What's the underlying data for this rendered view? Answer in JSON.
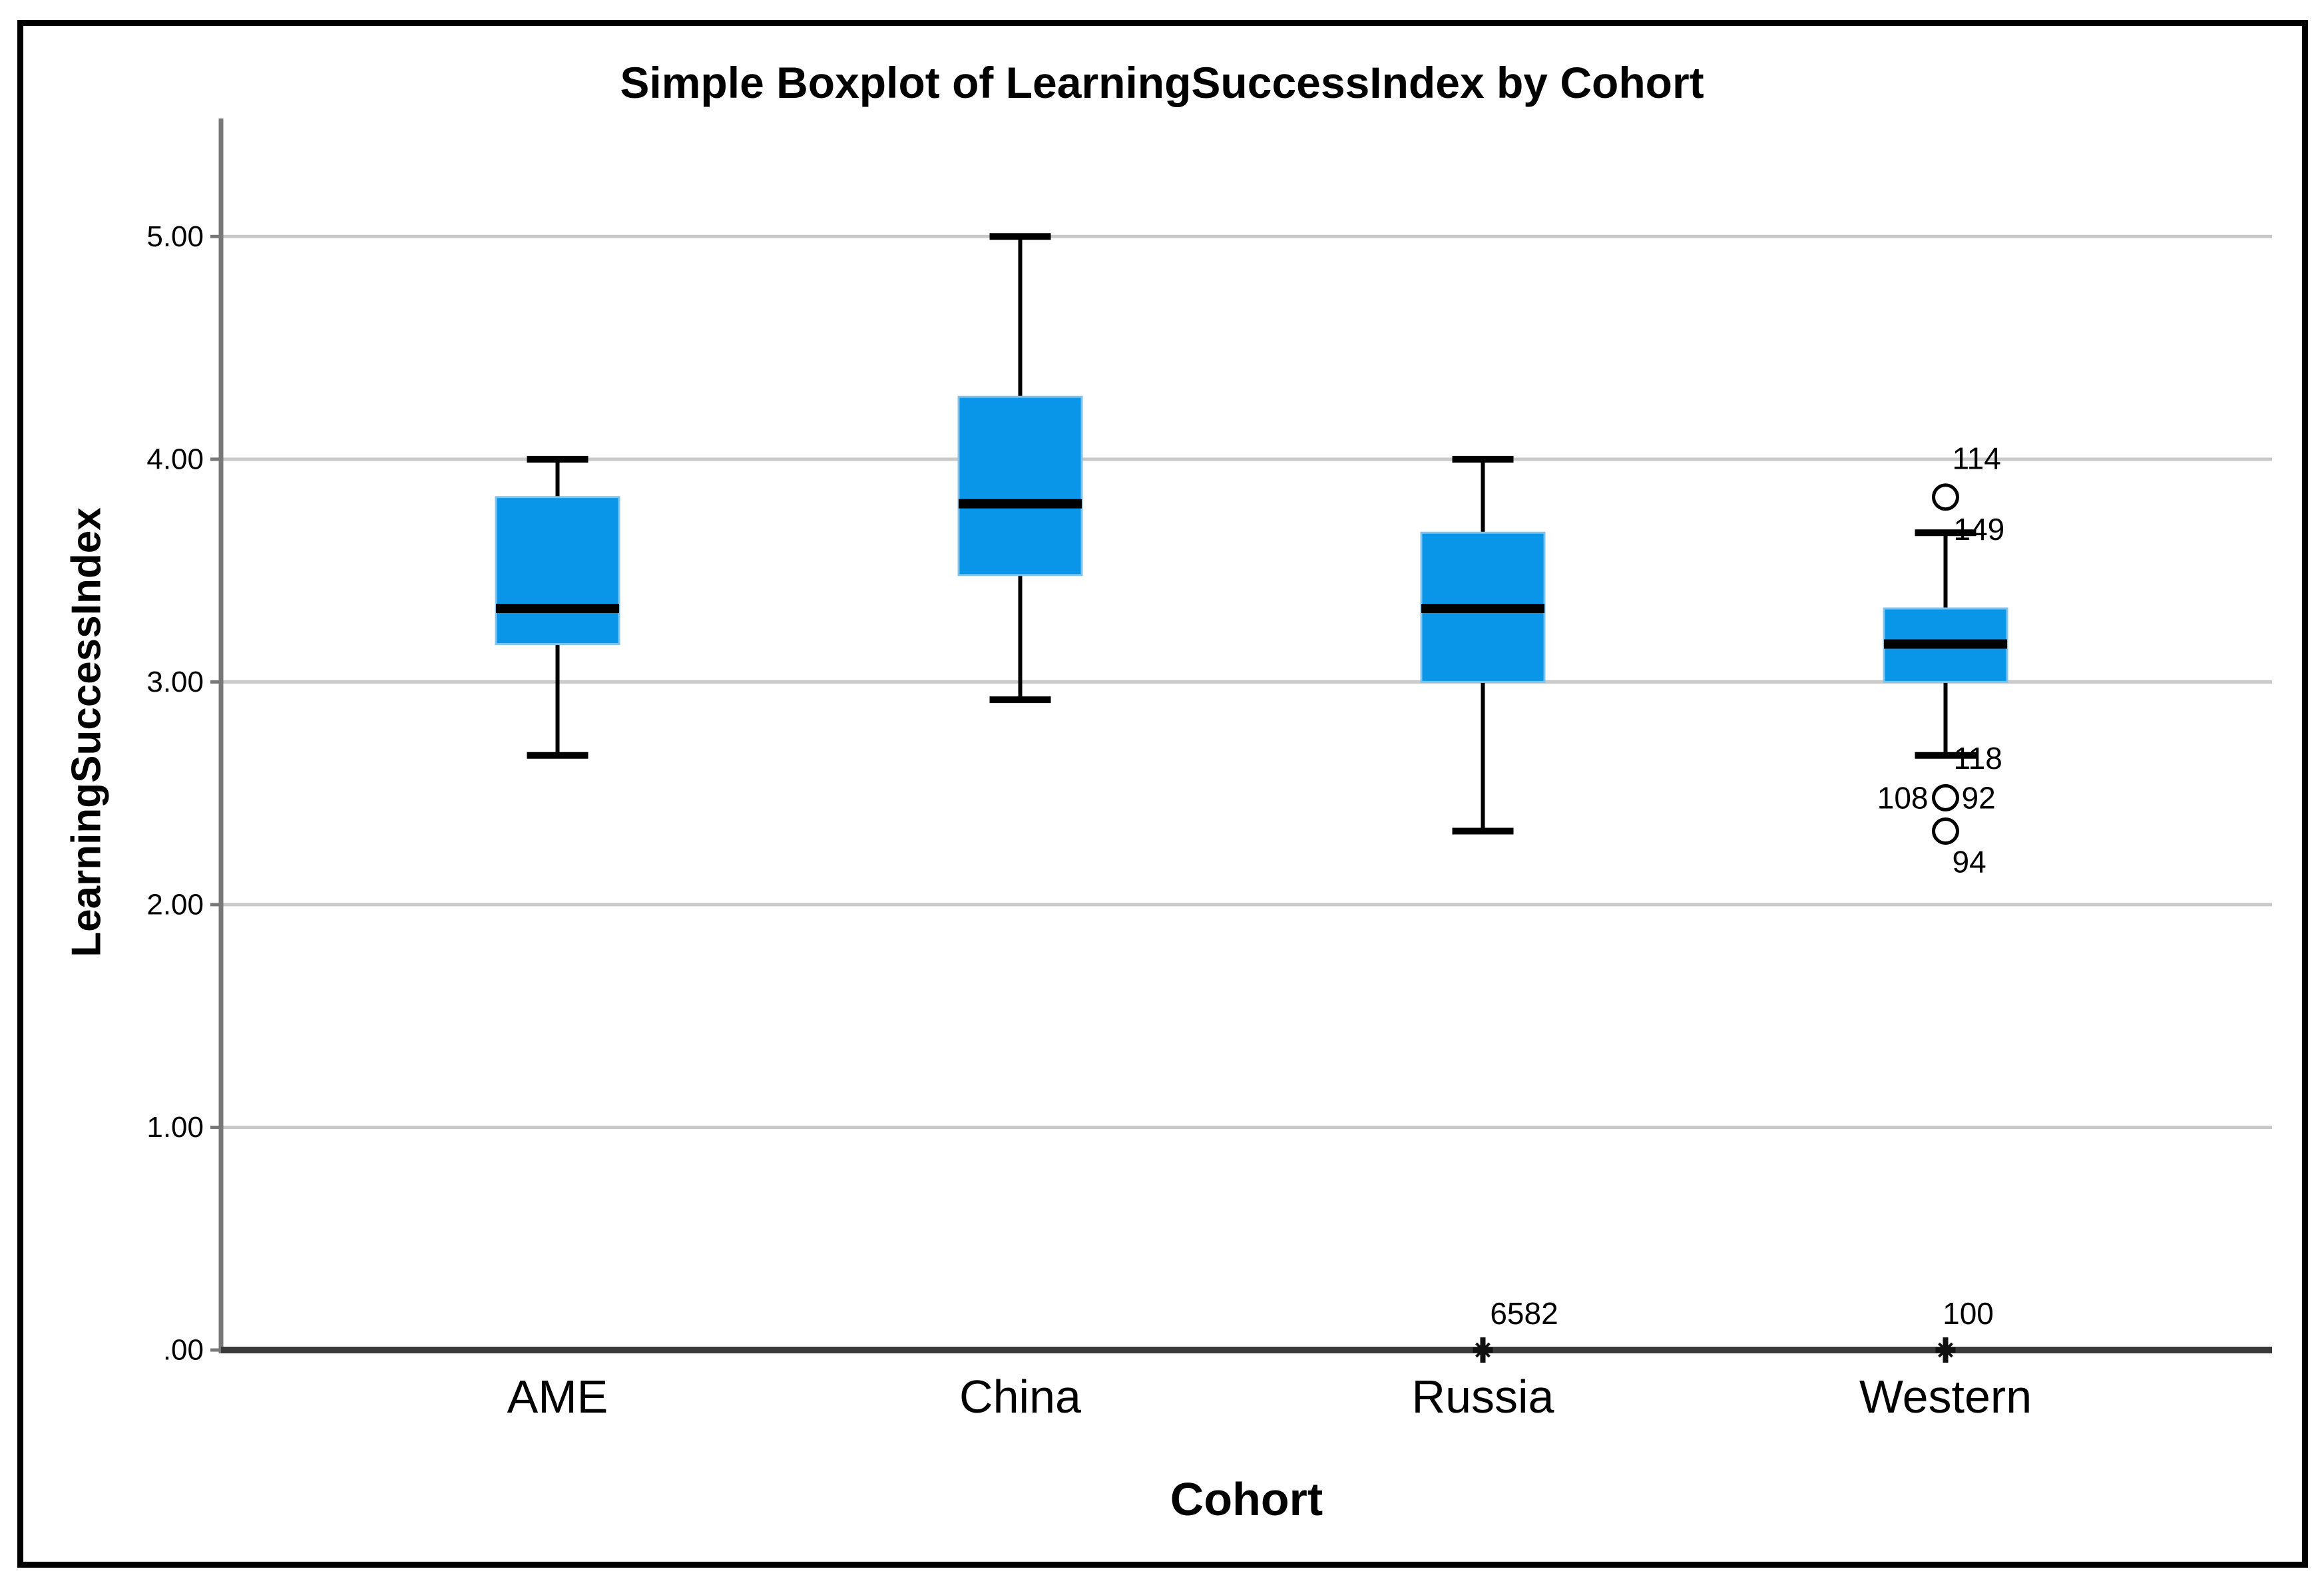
{
  "chart_data": {
    "type": "boxplot",
    "title": "Simple Boxplot of LearningSuccessIndex by Cohort",
    "xlabel": "Cohort",
    "ylabel": "LearningSuccessIndex",
    "ylim": [
      0,
      5.53
    ],
    "grid": "horizontal-gridlines-on",
    "legend": "none",
    "yticks": [
      {
        "label": ".00",
        "value": 0
      },
      {
        "label": "1.00",
        "value": 1
      },
      {
        "label": "2.00",
        "value": 2
      },
      {
        "label": "3.00",
        "value": 3
      },
      {
        "label": "4.00",
        "value": 4
      },
      {
        "label": "5.00",
        "value": 5
      }
    ],
    "categories": [
      "AME",
      "China",
      "Russia",
      "Western"
    ],
    "series": [
      {
        "name": "AME",
        "min": 2.67,
        "q1": 3.17,
        "median": 3.33,
        "q3": 3.83,
        "max": 4.0,
        "outliers": []
      },
      {
        "name": "China",
        "min": 2.92,
        "q1": 3.48,
        "median": 3.8,
        "q3": 4.28,
        "max": 5.0,
        "outliers": []
      },
      {
        "name": "Russia",
        "min": 2.33,
        "q1": 3.0,
        "median": 3.33,
        "q3": 3.67,
        "max": 4.0,
        "outliers": [
          {
            "value": 0.0,
            "marker": "extreme",
            "labels": [
              {
                "text": "6582",
                "dx": 62,
                "dy": -55,
                "anchor": "middle"
              }
            ]
          }
        ]
      },
      {
        "name": "Western",
        "min": 2.67,
        "q1": 3.0,
        "median": 3.17,
        "q3": 3.33,
        "max": 3.67,
        "whisker_labels": {
          "max": {
            "text": "149",
            "dx": 12,
            "dy": -5
          },
          "min": {
            "text": "118",
            "dx": 12,
            "dy": 4
          }
        },
        "outliers": [
          {
            "value": 3.83,
            "marker": "circle",
            "labels": [
              {
                "text": "114",
                "dx": 10,
                "dy": -58,
                "anchor": "start"
              }
            ]
          },
          {
            "value": 2.48,
            "marker": "circle",
            "labels": [
              {
                "text": "108",
                "dx": -26,
                "dy": 0,
                "anchor": "end"
              },
              {
                "text": "92",
                "dx": 24,
                "dy": 0,
                "anchor": "start"
              }
            ]
          },
          {
            "value": 2.33,
            "marker": "circle",
            "labels": [
              {
                "text": "94",
                "dx": 10,
                "dy": 46,
                "anchor": "start"
              }
            ]
          },
          {
            "value": 0.0,
            "marker": "extreme",
            "labels": [
              {
                "text": "100",
                "dx": 34,
                "dy": -55,
                "anchor": "middle"
              }
            ]
          }
        ]
      }
    ],
    "colors": {
      "box_fill": "#0995E8",
      "box_border": "#7FC3EF",
      "median": "#000000",
      "whisker": "#000000",
      "gridline": "#C9C9C9",
      "axis": "#787878",
      "baseline": "#3A3A3A",
      "figure_border": "#000000",
      "background": "#FFFFFF",
      "text": "#000000"
    }
  }
}
